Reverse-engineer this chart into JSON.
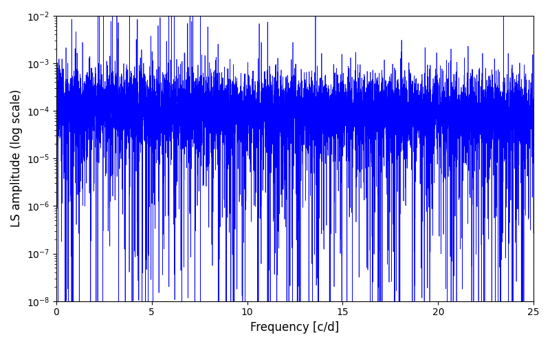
{
  "xlabel": "Frequency [c/d]",
  "ylabel": "LS amplitude (log scale)",
  "xlim": [
    0,
    25
  ],
  "ylim": [
    1e-08,
    0.01
  ],
  "line_color": "#0000ff",
  "line_width": 0.5,
  "freq_min": 0.0,
  "freq_max": 25.0,
  "n_points": 8000,
  "seed": 7,
  "background_color": "#ffffff",
  "figsize": [
    8.0,
    5.0
  ],
  "dpi": 100
}
